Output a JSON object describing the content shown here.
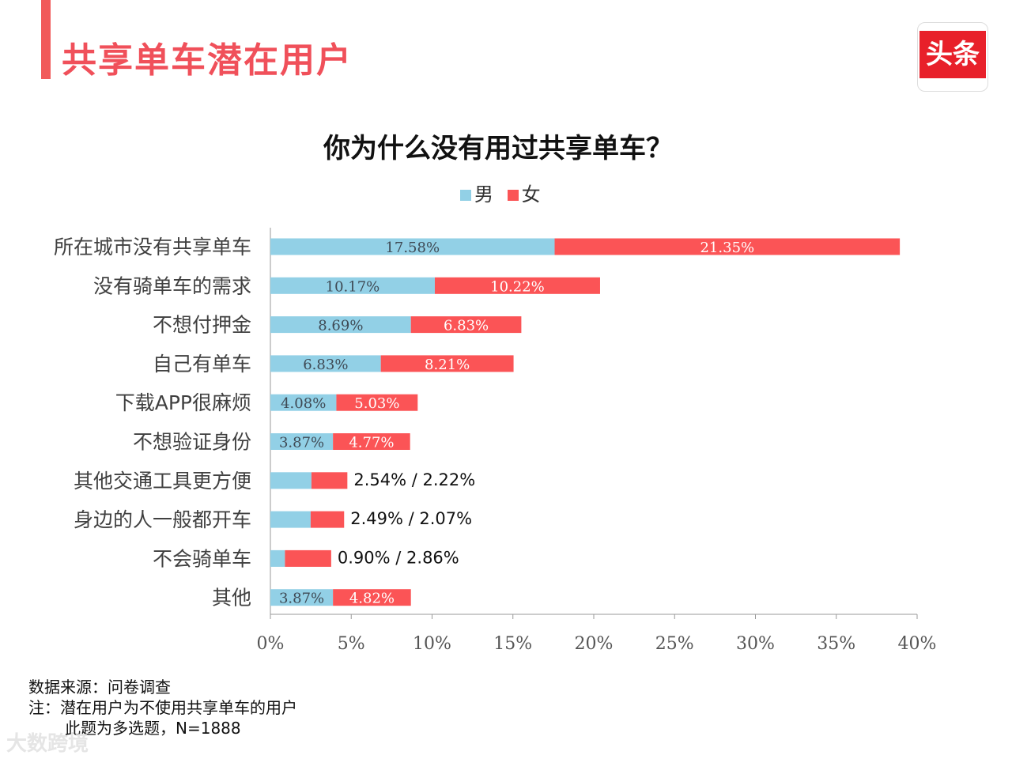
{
  "header": {
    "title": "共享单车潜在用户"
  },
  "logo": {
    "text": "头条",
    "color": "#e8202a"
  },
  "chart_data": {
    "type": "bar",
    "orientation": "horizontal",
    "stacked": true,
    "title": "你为什么没有用过共享单车？",
    "legend_position": "top-center",
    "categories": [
      "所在城市没有共享单车",
      "没有骑单车的需求",
      "不想付押金",
      "自己有单车",
      "下载APP很麻烦",
      "不想验证身份",
      "其他交通工具更方便",
      "身边的人一般都开车",
      "不会骑单车",
      "其他"
    ],
    "series": [
      {
        "name": "男",
        "color": "#92d0e6",
        "values": [
          17.58,
          10.17,
          8.69,
          6.83,
          4.08,
          3.87,
          2.54,
          2.49,
          0.9,
          3.87
        ],
        "labels": [
          "17.58%",
          "10.17%",
          "8.69%",
          "6.83%",
          "4.08%",
          "3.87%",
          "",
          "",
          "",
          "3.87%"
        ]
      },
      {
        "name": "女",
        "color": "#fb5456",
        "values": [
          21.35,
          10.22,
          6.83,
          8.21,
          5.03,
          4.77,
          2.22,
          2.07,
          2.86,
          4.82
        ],
        "labels": [
          "21.35%",
          "10.22%",
          "6.83%",
          "8.21%",
          "5.03%",
          "4.77%",
          "",
          "",
          "",
          "4.82%"
        ]
      }
    ],
    "outside_labels": [
      "",
      "",
      "",
      "",
      "",
      "",
      "2.54%  /  2.22%",
      "2.49%  /  2.07%",
      "0.90%  /  2.86%",
      ""
    ],
    "xlim": [
      0,
      40
    ],
    "xticks": [
      "0%",
      "5%",
      "10%",
      "15%",
      "20%",
      "25%",
      "30%",
      "35%",
      "40%"
    ],
    "grid": false
  },
  "footer": {
    "line1": "数据来源：问卷调查",
    "line2": "注：潜在用户为不使用共享单车的用户",
    "line3": "此题为多选题，N=1888"
  },
  "watermark": "大数跨境"
}
